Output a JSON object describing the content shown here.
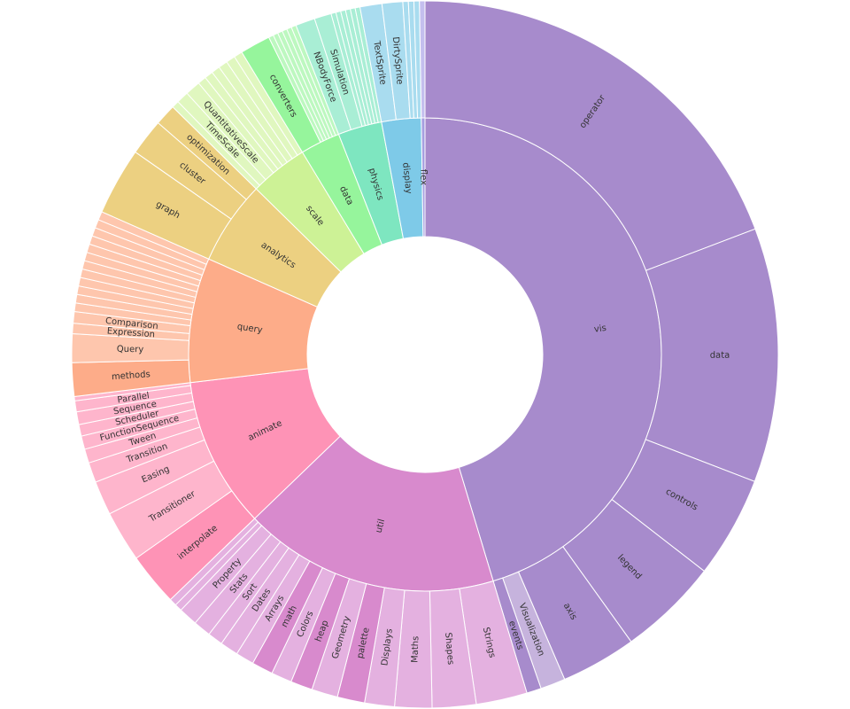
{
  "chart_data": {
    "type": "sunburst",
    "nodes": [
      {
        "label": "vis",
        "value": 163.0,
        "color": "#a78bcc",
        "children": [
          {
            "label": "operator",
            "value": 69.1,
            "color": "#a78bcc"
          },
          {
            "label": "data",
            "value": 41.8,
            "color": "#a78bcc"
          },
          {
            "label": "controls",
            "value": 16.7,
            "color": "#a78bcc"
          },
          {
            "label": "legend",
            "value": 16.5,
            "color": "#a78bcc"
          },
          {
            "label": "axis",
            "value": 12.4,
            "color": "#a78bcc"
          },
          {
            "label": "Visualization",
            "value": 4.1,
            "color": "#c6b3dd"
          },
          {
            "label": "events",
            "value": 2.4,
            "color": "#a78bcc"
          }
        ]
      },
      {
        "label": "util",
        "value": 62.8,
        "color": "#d88acd",
        "children": [
          {
            "label": "Strings",
            "value": 8.4,
            "color": "#e4b1e0"
          },
          {
            "label": "Shapes",
            "value": 7.2,
            "color": "#e4b1e0"
          },
          {
            "label": "Maths",
            "value": 6.1,
            "color": "#e4b1e0"
          },
          {
            "label": "Displays",
            "value": 4.9,
            "color": "#e4b1e0"
          },
          {
            "label": "palette",
            "value": 4.5,
            "color": "#d88acd"
          },
          {
            "label": "Geometry",
            "value": 4.3,
            "color": "#e4b1e0"
          },
          {
            "label": "heap",
            "value": 3.6,
            "color": "#d88acd"
          },
          {
            "label": "Colors",
            "value": 3.4,
            "color": "#e4b1e0"
          },
          {
            "label": "math",
            "value": 3.5,
            "color": "#d88acd"
          },
          {
            "label": "Arrays",
            "value": 3.0,
            "color": "#e4b1e0"
          },
          {
            "label": "Dates",
            "value": 3.0,
            "color": "#e4b1e0"
          },
          {
            "label": "Sort",
            "value": 2.5,
            "color": "#e4b1e0"
          },
          {
            "label": "Stats",
            "value": 2.9,
            "color": "#e4b1e0"
          },
          {
            "label": "Property",
            "value": 3.1,
            "color": "#e4b1e0"
          },
          {
            "label": null,
            "value": 1.2,
            "color": "#e4b1e0"
          },
          {
            "label": null,
            "value": 1.2,
            "color": "#e4b1e0"
          }
        ]
      },
      {
        "label": "animate",
        "value": 37.0,
        "color": "#fe93b6",
        "children": [
          {
            "label": "interpolate",
            "value": 8.7,
            "color": "#fe93b6"
          },
          {
            "label": "Transitioner",
            "value": 8.4,
            "color": "#feb5cc"
          },
          {
            "label": "Easing",
            "value": 5.6,
            "color": "#feb5cc"
          },
          {
            "label": "Transition",
            "value": 3.3,
            "color": "#feb5cc"
          },
          {
            "label": "Tween",
            "value": 2.3,
            "color": "#feb5cc"
          },
          {
            "label": "FunctionSequence",
            "value": 2.2,
            "color": "#feb5cc"
          },
          {
            "label": "Scheduler",
            "value": 1.9,
            "color": "#feb5cc"
          },
          {
            "label": "Sequence",
            "value": 2.1,
            "color": "#feb5cc"
          },
          {
            "label": "Parallel",
            "value": 1.8,
            "color": "#feb5cc"
          },
          {
            "label": null,
            "value": 0.7,
            "color": "#feb5cc"
          }
        ]
      },
      {
        "label": "query",
        "value": 30.6,
        "color": "#fdac89",
        "children": [
          {
            "label": "methods",
            "value": 5.5,
            "color": "#fdac89"
          },
          {
            "label": "Query",
            "value": 4.7,
            "color": "#fec6ad"
          },
          {
            "label": "Expression",
            "value": 1.7,
            "color": "#fec6ad"
          },
          {
            "label": "Comparison",
            "value": 1.9,
            "color": "#fec6ad"
          },
          {
            "label": null,
            "value": 1.4,
            "color": "#fec6ad"
          },
          {
            "label": null,
            "value": 1.4,
            "color": "#fec6ad"
          },
          {
            "label": null,
            "value": 1.4,
            "color": "#fec6ad"
          },
          {
            "label": null,
            "value": 1.4,
            "color": "#fec6ad"
          },
          {
            "label": null,
            "value": 1.4,
            "color": "#fec6ad"
          },
          {
            "label": null,
            "value": 1.4,
            "color": "#fec6ad"
          },
          {
            "label": null,
            "value": 1.4,
            "color": "#fec6ad"
          },
          {
            "label": null,
            "value": 1.4,
            "color": "#fec6ad"
          },
          {
            "label": null,
            "value": 1.4,
            "color": "#fec6ad"
          },
          {
            "label": null,
            "value": 1.4,
            "color": "#fec6ad"
          },
          {
            "label": null,
            "value": 1.4,
            "color": "#fec6ad"
          },
          {
            "label": null,
            "value": 1.4,
            "color": "#fec6ad"
          }
        ]
      },
      {
        "label": "analytics",
        "value": 20.6,
        "color": "#ecd081",
        "children": [
          {
            "label": "graph",
            "value": 11.1,
            "color": "#ecd081"
          },
          {
            "label": "cluster",
            "value": 6.0,
            "color": "#ecd081"
          },
          {
            "label": "optimization",
            "value": 3.5,
            "color": "#ecd081"
          }
        ]
      },
      {
        "label": "scale",
        "value": 14.3,
        "color": "#cdf296",
        "children": [
          {
            "label": null,
            "value": 1.2,
            "color": "#e0f7bf"
          },
          {
            "label": "TimeScale",
            "value": 2.0,
            "color": "#e0f7bf"
          },
          {
            "label": "QuantitativeScale",
            "value": 2.5,
            "color": "#e0f7bf"
          },
          {
            "label": null,
            "value": 1.4,
            "color": "#e0f7bf"
          },
          {
            "label": null,
            "value": 1.4,
            "color": "#e0f7bf"
          },
          {
            "label": null,
            "value": 1.4,
            "color": "#e0f7bf"
          },
          {
            "label": null,
            "value": 1.5,
            "color": "#e0f7bf"
          },
          {
            "label": null,
            "value": 1.5,
            "color": "#e0f7bf"
          },
          {
            "label": null,
            "value": 1.4,
            "color": "#e0f7bf"
          }
        ]
      },
      {
        "label": "data",
        "value": 9.8,
        "color": "#96f59c",
        "children": [
          {
            "label": "converters",
            "value": 5.0,
            "color": "#96f59c"
          },
          {
            "label": null,
            "value": 0.8,
            "color": "#bdf8c0"
          },
          {
            "label": null,
            "value": 0.8,
            "color": "#bdf8c0"
          },
          {
            "label": null,
            "value": 0.8,
            "color": "#bdf8c0"
          },
          {
            "label": null,
            "value": 0.8,
            "color": "#bdf8c0"
          },
          {
            "label": null,
            "value": 0.8,
            "color": "#bdf8c0"
          },
          {
            "label": null,
            "value": 0.8,
            "color": "#bdf8c0"
          }
        ]
      },
      {
        "label": "physics",
        "value": 10.8,
        "color": "#7ee6c0",
        "children": [
          {
            "label": "NBodyForce",
            "value": 3.2,
            "color": "#a9eed5"
          },
          {
            "label": "Simulation",
            "value": 2.8,
            "color": "#a9eed5"
          },
          {
            "label": null,
            "value": 0.8,
            "color": "#a9eed5"
          },
          {
            "label": null,
            "value": 0.8,
            "color": "#a9eed5"
          },
          {
            "label": null,
            "value": 0.8,
            "color": "#a9eed5"
          },
          {
            "label": null,
            "value": 0.8,
            "color": "#a9eed5"
          },
          {
            "label": null,
            "value": 0.8,
            "color": "#a9eed5"
          },
          {
            "label": null,
            "value": 0.8,
            "color": "#a9eed5"
          }
        ]
      },
      {
        "label": "display",
        "value": 9.7,
        "color": "#7ecae8",
        "children": [
          {
            "label": "TextSprite",
            "value": 3.6,
            "color": "#a9dcef"
          },
          {
            "label": "DirtySprite",
            "value": 3.4,
            "color": "#a9dcef"
          },
          {
            "label": null,
            "value": 0.9,
            "color": "#a9dcef"
          },
          {
            "label": null,
            "value": 0.9,
            "color": "#a9dcef"
          },
          {
            "label": null,
            "value": 0.9,
            "color": "#a9dcef"
          }
        ]
      },
      {
        "label": "flex",
        "value": 0.9,
        "color": "#a69fe0",
        "children": [
          {
            "label": null,
            "value": 0.9,
            "color": "#c4bfee"
          }
        ]
      }
    ]
  }
}
